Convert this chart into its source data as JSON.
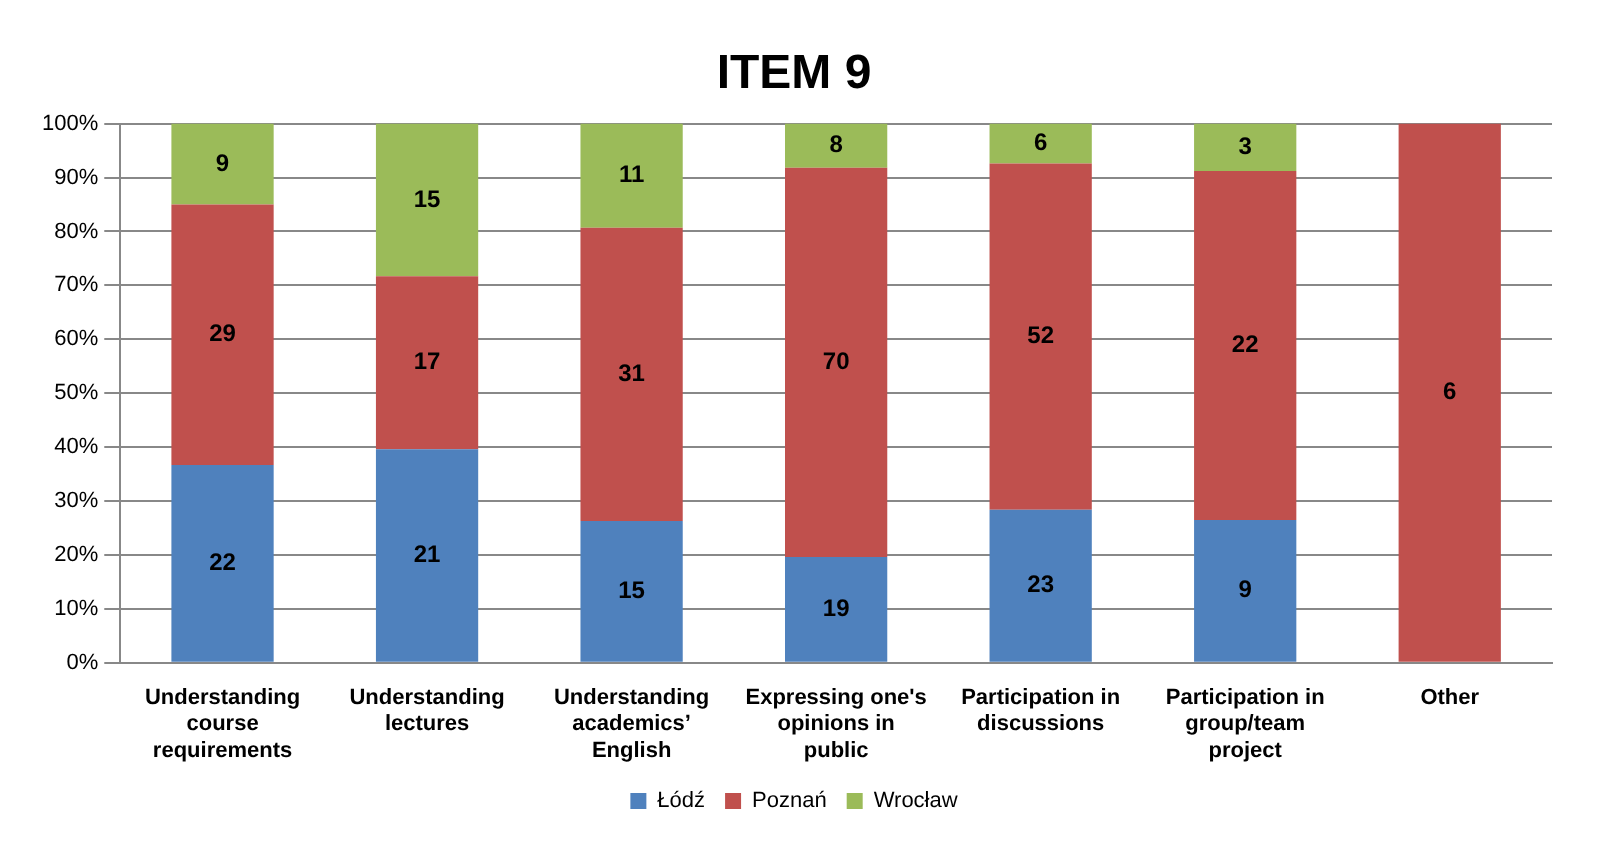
{
  "chart_data": {
    "type": "bar",
    "title": "ITEM 9",
    "stacked": true,
    "categories": [
      "Understanding course requirements",
      "Understanding lectures",
      "Understanding academics’ English",
      "Expressing one's opinions in public",
      "Participation in discussions",
      "Participation in group/team project",
      "Other"
    ],
    "series": [
      {
        "name": "Łódź",
        "color": "#4f81bd",
        "values": [
          36.7,
          39.6,
          26.3,
          19.6,
          28.4,
          26.5,
          0
        ]
      },
      {
        "name": "Poznań",
        "color": "#c0504d",
        "values": [
          48.3,
          32.1,
          54.4,
          72.2,
          64.2,
          64.7,
          100
        ]
      },
      {
        "name": "Wrocław",
        "color": "#9bbb59",
        "values": [
          15,
          28.3,
          19.3,
          8.2,
          7.4,
          8.8,
          0
        ]
      }
    ],
    "annotations": [
      "22",
      "29",
      "9",
      "21",
      "17",
      "15",
      "15",
      "31",
      "11",
      "19",
      "70",
      "8",
      "23",
      "52",
      "6",
      "9",
      "22",
      "3",
      "6"
    ],
    "ylim": [
      0,
      100
    ],
    "yticks": [
      {
        "value": 0,
        "label": "0%"
      },
      {
        "value": 10,
        "label": "10%"
      },
      {
        "value": 20,
        "label": "20%"
      },
      {
        "value": 30,
        "label": "30%"
      },
      {
        "value": 40,
        "label": "40%"
      },
      {
        "value": 50,
        "label": "50%"
      },
      {
        "value": 60,
        "label": "60%"
      },
      {
        "value": 70,
        "label": "70%"
      },
      {
        "value": 80,
        "label": "80%"
      },
      {
        "value": 90,
        "label": "90%"
      },
      {
        "value": 100,
        "label": "100%"
      }
    ],
    "grid": "y",
    "legend": "bottom"
  }
}
